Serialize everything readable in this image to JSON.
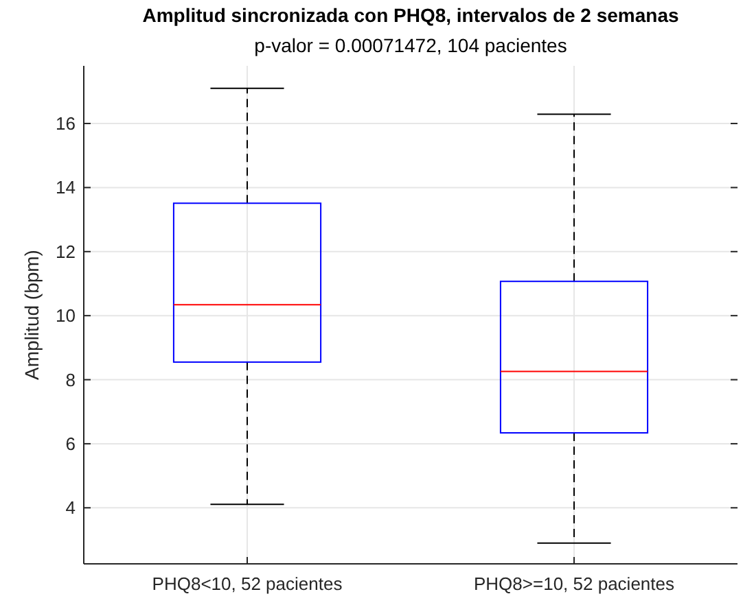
{
  "chart_data": {
    "type": "box",
    "title": "Amplitud sincronizada con PHQ8, intervalos de 2 semanas",
    "subtitle": "p-valor = 0.00071472, 104 pacientes",
    "ylabel": "Amplitud (bpm)",
    "categories": [
      "PHQ8<10, 52 pacientes",
      "PHQ8>=10, 52 pacientes"
    ],
    "series": [
      {
        "color": "#0000ff",
        "boxes": [
          {
            "low": 4.11,
            "q1": 8.55,
            "median": 10.34,
            "q3": 13.51,
            "high": 17.1
          },
          {
            "low": 2.9,
            "q1": 6.34,
            "median": 8.26,
            "q3": 11.07,
            "high": 16.29
          }
        ]
      }
    ],
    "ylim": [
      2.25,
      17.8
    ],
    "yticks": [
      4,
      6,
      8,
      10,
      12,
      14,
      16
    ],
    "grid": true
  }
}
